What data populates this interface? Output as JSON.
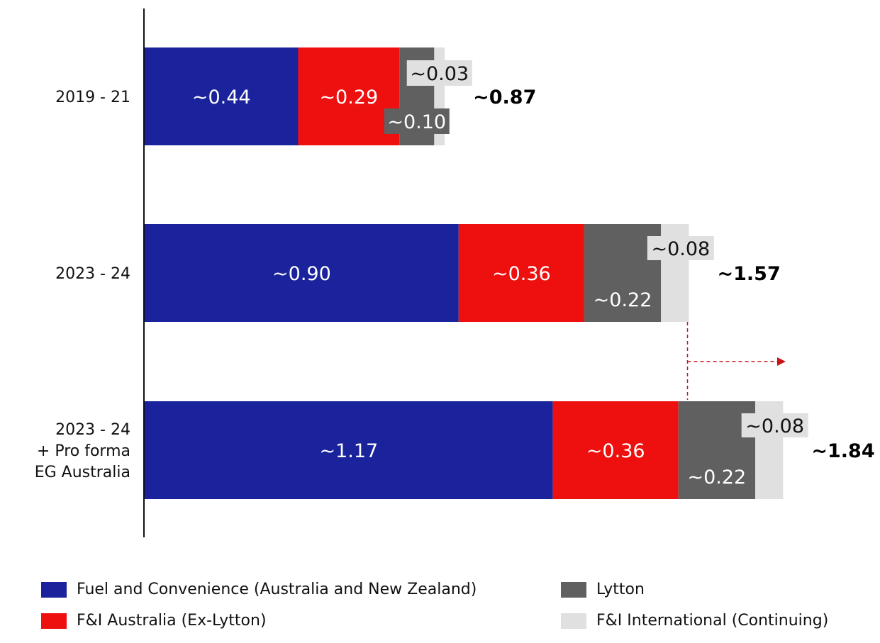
{
  "chart_data": {
    "type": "bar",
    "orientation": "horizontal",
    "stacked": true,
    "categories": [
      [
        "2019 - 21"
      ],
      [
        "2023 - 24"
      ],
      [
        "2023 - 24",
        "+ Pro forma",
        "EG Australia"
      ]
    ],
    "series": [
      {
        "name": "Fuel and Convenience (Australia and New Zealand)",
        "color": "#1a239b",
        "values": [
          0.44,
          0.9,
          1.17
        ],
        "labels": [
          "~0.44",
          "~0.90",
          "~1.17"
        ]
      },
      {
        "name": "F&I Australia (Ex-Lytton)",
        "color": "#ee0f0f",
        "values": [
          0.29,
          0.36,
          0.36
        ],
        "labels": [
          "~0.29",
          "~0.36",
          "~0.36"
        ]
      },
      {
        "name": "Lytton",
        "color": "#606060",
        "values": [
          0.1,
          0.22,
          0.22
        ],
        "labels": [
          "~0.10",
          "~0.22",
          "~0.22"
        ]
      },
      {
        "name": "F&I International (Continuing)",
        "color": "#e0e0e0",
        "values": [
          0.03,
          0.08,
          0.08
        ],
        "labels": [
          "~0.03",
          "~0.08",
          "~0.08"
        ]
      }
    ],
    "totals": [
      "~0.87",
      "~1.57",
      "~1.84"
    ],
    "xlim": [
      0,
      1.84
    ],
    "grid": false,
    "legend_position": "bottom",
    "annotation": "dashed red arrow from end of 2023 - 24 bar pointing right"
  }
}
